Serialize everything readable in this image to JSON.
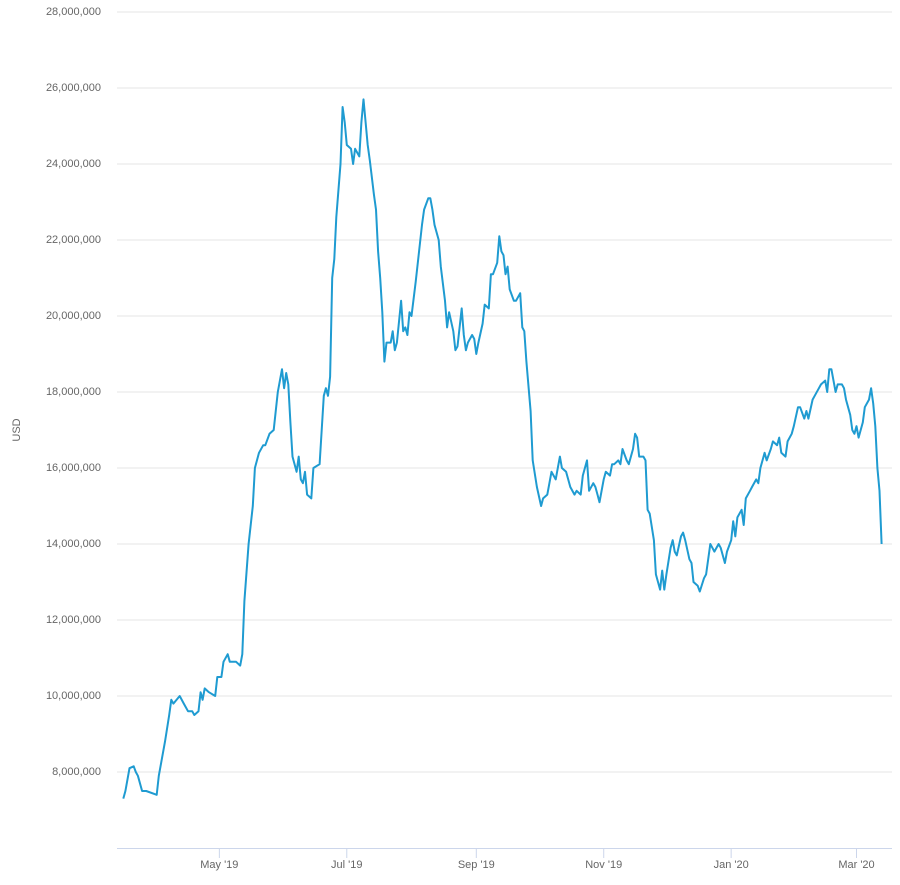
{
  "chart_data": {
    "type": "line",
    "y_label": "USD",
    "xlim": [
      -3,
      368
    ],
    "xticks": [
      {
        "value": 46,
        "label": "May '19"
      },
      {
        "value": 107,
        "label": "Jul '19"
      },
      {
        "value": 169,
        "label": "Sep '19"
      },
      {
        "value": 230,
        "label": "Nov '19"
      },
      {
        "value": 291,
        "label": "Jan '20"
      },
      {
        "value": 351,
        "label": "Mar '20"
      }
    ],
    "ylim": [
      6000000,
      28000000
    ],
    "yticks": [
      {
        "value": 8000000,
        "label": "8,000,000"
      },
      {
        "value": 10000000,
        "label": "10,000,000"
      },
      {
        "value": 12000000,
        "label": "12,000,000"
      },
      {
        "value": 14000000,
        "label": "14,000,000"
      },
      {
        "value": 16000000,
        "label": "16,000,000"
      },
      {
        "value": 18000000,
        "label": "18,000,000"
      },
      {
        "value": 20000000,
        "label": "20,000,000"
      },
      {
        "value": 22000000,
        "label": "22,000,000"
      },
      {
        "value": 24000000,
        "label": "24,000,000"
      },
      {
        "value": 26000000,
        "label": "26,000,000"
      },
      {
        "value": 28000000,
        "label": "28,000,000"
      }
    ],
    "grid": true,
    "color": "#1f9bd1",
    "x": [
      0,
      1,
      3,
      5,
      6,
      7,
      9,
      11,
      16,
      17,
      20,
      22,
      23,
      24,
      27,
      29,
      31,
      33,
      34,
      36,
      37,
      38,
      39,
      41,
      44,
      45,
      47,
      48,
      50,
      51,
      54,
      56,
      57,
      58,
      60,
      62,
      63,
      65,
      67,
      68,
      70,
      72,
      74,
      76,
      77,
      78,
      79,
      80,
      81,
      83,
      84,
      85,
      86,
      87,
      88,
      90,
      91,
      94,
      95,
      96,
      97,
      98,
      99,
      100,
      101,
      102,
      104,
      105,
      106,
      107,
      109,
      110,
      111,
      113,
      114,
      115,
      117,
      118,
      120,
      121,
      122,
      123,
      124,
      125,
      126,
      128,
      129,
      130,
      131,
      133,
      134,
      135,
      136,
      137,
      138,
      140,
      141,
      143,
      144,
      146,
      147,
      148,
      149,
      151,
      152,
      154,
      155,
      156,
      158,
      159,
      160,
      162,
      163,
      164,
      165,
      167,
      168,
      169,
      170,
      172,
      173,
      175,
      176,
      177,
      179,
      180,
      181,
      182,
      183,
      184,
      185,
      187,
      188,
      190,
      191,
      192,
      193,
      195,
      196,
      198,
      200,
      201,
      203,
      204,
      205,
      207,
      209,
      210,
      212,
      213,
      214,
      216,
      217,
      219,
      220,
      222,
      223,
      225,
      226,
      227,
      228,
      230,
      231,
      233,
      234,
      235,
      237,
      238,
      239,
      241,
      242,
      244,
      245,
      246,
      247,
      249,
      250,
      251,
      252,
      254,
      255,
      257,
      258,
      259,
      260,
      262,
      263,
      264,
      265,
      267,
      268,
      269,
      271,
      272,
      273,
      275,
      276,
      278,
      279,
      281,
      282,
      283,
      285,
      286,
      288,
      289,
      291,
      292,
      293,
      294,
      296,
      297,
      298,
      300,
      301,
      303,
      304,
      305,
      307,
      308,
      310,
      311,
      313,
      314,
      315,
      317,
      318,
      320,
      321,
      323,
      324,
      326,
      327,
      328,
      330,
      331,
      333,
      334,
      336,
      337,
      338,
      339,
      341,
      342,
      344,
      345,
      346,
      348,
      349,
      350,
      351,
      352,
      354,
      355,
      357,
      358,
      359,
      360,
      361,
      362,
      363
    ],
    "values": [
      7300000.0,
      7500000.0,
      8100000.0,
      8150000.0,
      8000000.0,
      7900000.0,
      7500000.0,
      7500000.0,
      7400000.0,
      7900000.0,
      8800000.0,
      9500000.0,
      9900000.0,
      9800000.0,
      10000000.0,
      9800000.0,
      9600000.0,
      9600000.0,
      9500000.0,
      9600000.0,
      10100000.0,
      9900000.0,
      10200000.0,
      10100000.0,
      10000000.0,
      10500000.0,
      10500000.0,
      10900000.0,
      11100000.0,
      10900000.0,
      10900000.0,
      10800000.0,
      11100000.0,
      12500000.0,
      14000000.0,
      15000000.0,
      16000000.0,
      16400000.0,
      16600000.0,
      16600000.0,
      16900000.0,
      17000000.0,
      18000000.0,
      18600000.0,
      18100000.0,
      18500000.0,
      18200000.0,
      17200000.0,
      16300000.0,
      15900000.0,
      16300000.0,
      15700000.0,
      15600000.0,
      15900000.0,
      15300000.0,
      15200000.0,
      16000000.0,
      16100000.0,
      17000000.0,
      17900000.0,
      18100000.0,
      17900000.0,
      18400000.0,
      21000000.0,
      21500000.0,
      22600000.0,
      24000000.0,
      25500000.0,
      25100000.0,
      24500000.0,
      24400000.0,
      24000000.0,
      24400000.0,
      24200000.0,
      25100000.0,
      25700000.0,
      24500000.0,
      24100000.0,
      23200000.0,
      22800000.0,
      21700000.0,
      21000000.0,
      20100000.0,
      18800000.0,
      19300000.0,
      19300000.0,
      19600000.0,
      19100000.0,
      19300000.0,
      20400000.0,
      19600000.0,
      19700000.0,
      19500000.0,
      20100000.0,
      20000000.0,
      20900000.0,
      21400000.0,
      22400000.0,
      22800000.0,
      23100000.0,
      23100000.0,
      22800000.0,
      22400000.0,
      22000000.0,
      21300000.0,
      20400000.0,
      19700000.0,
      20100000.0,
      19600000.0,
      19100000.0,
      19200000.0,
      20200000.0,
      19500000.0,
      19100000.0,
      19300000.0,
      19500000.0,
      19400000.0,
      19000000.0,
      19300000.0,
      19800000.0,
      20300000.0,
      20200000.0,
      21100000.0,
      21100000.0,
      21400000.0,
      22100000.0,
      21700000.0,
      21600000.0,
      21100000.0,
      21300000.0,
      20700000.0,
      20400000.0,
      20400000.0,
      20600000.0,
      19700000.0,
      19600000.0,
      18800000.0,
      17500000.0,
      16200000.0,
      15500000.0,
      15000000.0,
      15200000.0,
      15300000.0,
      15600000.0,
      15900000.0,
      15700000.0,
      16300000.0,
      16000000.0,
      15900000.0,
      15700000.0,
      15500000.0,
      15300000.0,
      15400000.0,
      15300000.0,
      15800000.0,
      16200000.0,
      15400000.0,
      15600000.0,
      15500000.0,
      15300000.0,
      15100000.0,
      15700000.0,
      15900000.0,
      15800000.0,
      16100000.0,
      16100000.0,
      16200000.0,
      16100000.0,
      16500000.0,
      16200000.0,
      16100000.0,
      16500000.0,
      16900000.0,
      16800000.0,
      16300000.0,
      16300000.0,
      16200000.0,
      14900000.0,
      14800000.0,
      14100000.0,
      13200000.0,
      12800000.0,
      13300000.0,
      12800000.0,
      13200000.0,
      13900000.0,
      14100000.0,
      13800000.0,
      13700000.0,
      14200000.0,
      14300000.0,
      14100000.0,
      13600000.0,
      13500000.0,
      13000000.0,
      12900000.0,
      12750000.0,
      13100000.0,
      13200000.0,
      14000000.0,
      13900000.0,
      13800000.0,
      14000000.0,
      13900000.0,
      13500000.0,
      13800000.0,
      14100000.0,
      14600000.0,
      14200000.0,
      14700000.0,
      14900000.0,
      14500000.0,
      15200000.0,
      15400000.0,
      15500000.0,
      15700000.0,
      15600000.0,
      16000000.0,
      16400000.0,
      16200000.0,
      16500000.0,
      16700000.0,
      16600000.0,
      16800000.0,
      16400000.0,
      16300000.0,
      16700000.0,
      16900000.0,
      17100000.0,
      17600000.0,
      17600000.0,
      17300000.0,
      17500000.0,
      17300000.0,
      17800000.0,
      17900000.0,
      18100000.0,
      18200000.0,
      18300000.0,
      18000000.0,
      18600000.0,
      18600000.0,
      18000000.0,
      18200000.0,
      18200000.0,
      18100000.0,
      17800000.0,
      17400000.0,
      17000000.0,
      16900000.0,
      17100000.0,
      16800000.0,
      17200000.0,
      17600000.0,
      17800000.0,
      18100000.0,
      17700000.0,
      17100000.0,
      16000000.0,
      15400000.0,
      14000000.0
    ]
  }
}
